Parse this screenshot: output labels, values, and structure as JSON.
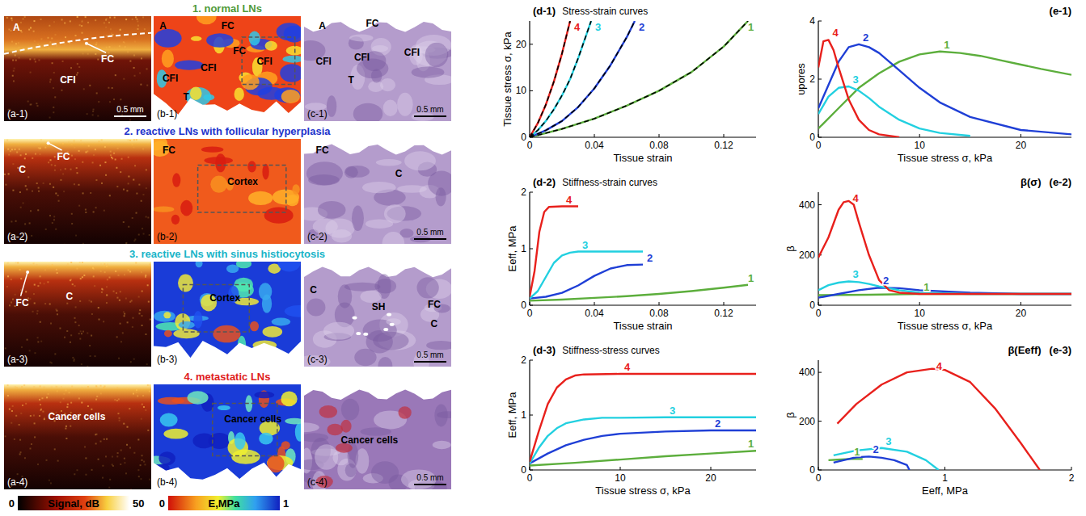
{
  "chart_data": [
    {
      "type": "line",
      "panel_label": "(d-1)",
      "title": "Stress-strain curves",
      "x_label": "Tissue strain",
      "y_label": "Tissue stress σ, kPa",
      "xlim": [
        0,
        0.14
      ],
      "xticks": [
        0,
        0.04,
        0.08,
        0.12
      ],
      "ylim": [
        0,
        25
      ],
      "yticks": [
        0,
        10,
        20
      ],
      "grid": false,
      "series": [
        {
          "name": "1",
          "color": "#5cae3c",
          "line_style": "solid",
          "x": [
            0,
            0.02,
            0.04,
            0.06,
            0.08,
            0.1,
            0.12,
            0.135
          ],
          "values": [
            0,
            1.8,
            4,
            6.8,
            10,
            14,
            19.5,
            25
          ]
        },
        {
          "name": "2",
          "color": "#1f3fd6",
          "line_style": "solid",
          "x": [
            0,
            0.01,
            0.02,
            0.03,
            0.04,
            0.05,
            0.06,
            0.065
          ],
          "values": [
            0,
            1.5,
            3.5,
            6.5,
            10.5,
            15.5,
            21.5,
            25
          ]
        },
        {
          "name": "3",
          "color": "#22d0e0",
          "line_style": "solid",
          "x": [
            0,
            0.005,
            0.01,
            0.015,
            0.02,
            0.025,
            0.03,
            0.035,
            0.038
          ],
          "values": [
            0,
            1.5,
            3.5,
            6,
            9,
            12.5,
            17,
            22,
            25
          ]
        },
        {
          "name": "4",
          "color": "#e8201c",
          "line_style": "solid",
          "x": [
            0,
            0.005,
            0.01,
            0.015,
            0.02,
            0.025
          ],
          "values": [
            0,
            3,
            7,
            12,
            18,
            25
          ]
        },
        {
          "color": "#000000",
          "line_style": "dashed",
          "x": [
            0,
            0.02,
            0.04,
            0.06,
            0.08,
            0.1,
            0.12,
            0.135
          ],
          "values": [
            0,
            1.8,
            4,
            6.8,
            10,
            14,
            19.5,
            25
          ]
        },
        {
          "color": "#000000",
          "line_style": "dashed",
          "x": [
            0,
            0.01,
            0.02,
            0.03,
            0.04,
            0.05,
            0.06,
            0.065
          ],
          "values": [
            0,
            1.5,
            3.5,
            6.5,
            10.5,
            15.5,
            21.5,
            25
          ]
        },
        {
          "color": "#000000",
          "line_style": "dashed",
          "x": [
            0,
            0.005,
            0.01,
            0.015,
            0.02,
            0.025,
            0.03,
            0.035,
            0.038
          ],
          "values": [
            0,
            1.5,
            3.5,
            6,
            9,
            12.5,
            17,
            22,
            25
          ]
        },
        {
          "color": "#000000",
          "line_style": "dashed",
          "x": [
            0,
            0.005,
            0.01,
            0.015,
            0.02,
            0.025
          ],
          "values": [
            0,
            3,
            7,
            12,
            18,
            25
          ]
        }
      ]
    },
    {
      "type": "line",
      "panel_label": "(d-2)",
      "title": "Stiffness-strain curves",
      "x_label": "Tissue strain",
      "y_label": "Eeff, MPa",
      "xlim": [
        0,
        0.14
      ],
      "xticks": [
        0,
        0.04,
        0.08,
        0.12
      ],
      "ylim": [
        0,
        2
      ],
      "yticks": [
        0,
        1,
        2
      ],
      "grid": false,
      "series": [
        {
          "name": "1",
          "color": "#5cae3c",
          "x": [
            0,
            0.02,
            0.04,
            0.06,
            0.08,
            0.1,
            0.12,
            0.135
          ],
          "values": [
            0.08,
            0.1,
            0.13,
            0.16,
            0.2,
            0.25,
            0.31,
            0.36
          ]
        },
        {
          "name": "2",
          "color": "#1f3fd6",
          "x": [
            0,
            0.01,
            0.02,
            0.03,
            0.04,
            0.05,
            0.06,
            0.07
          ],
          "values": [
            0.12,
            0.15,
            0.22,
            0.35,
            0.52,
            0.65,
            0.71,
            0.72
          ]
        },
        {
          "name": "3",
          "color": "#22d0e0",
          "x": [
            0,
            0.005,
            0.01,
            0.015,
            0.02,
            0.025,
            0.03,
            0.04,
            0.07
          ],
          "values": [
            0.12,
            0.25,
            0.5,
            0.75,
            0.88,
            0.93,
            0.95,
            0.95,
            0.95
          ]
        },
        {
          "name": "4",
          "color": "#e8201c",
          "x": [
            0,
            0.003,
            0.006,
            0.009,
            0.012,
            0.02,
            0.03
          ],
          "values": [
            0.15,
            0.6,
            1.3,
            1.65,
            1.74,
            1.75,
            1.75
          ]
        }
      ]
    },
    {
      "type": "line",
      "panel_label": "(d-3)",
      "title": "Stiffness-stress curves",
      "x_label": "Tissue stress σ, kPa",
      "y_label": "Eeff, MPa",
      "xlim": [
        0,
        25
      ],
      "xticks": [
        0,
        10,
        20
      ],
      "ylim": [
        0,
        2
      ],
      "yticks": [
        0,
        1,
        2
      ],
      "grid": false,
      "series": [
        {
          "name": "1",
          "color": "#5cae3c",
          "x": [
            0,
            5,
            10,
            15,
            20,
            25
          ],
          "values": [
            0.08,
            0.13,
            0.19,
            0.25,
            0.3,
            0.35
          ]
        },
        {
          "name": "2",
          "color": "#1f3fd6",
          "x": [
            0,
            2,
            4,
            6,
            8,
            10,
            15,
            20,
            25
          ],
          "values": [
            0.12,
            0.3,
            0.45,
            0.55,
            0.62,
            0.66,
            0.7,
            0.72,
            0.72
          ]
        },
        {
          "name": "3",
          "color": "#22d0e0",
          "x": [
            0,
            1,
            2,
            3,
            4,
            6,
            8,
            10,
            15,
            25
          ],
          "values": [
            0.12,
            0.4,
            0.62,
            0.76,
            0.85,
            0.92,
            0.95,
            0.95,
            0.96,
            0.96
          ]
        },
        {
          "name": "4",
          "color": "#e8201c",
          "x": [
            0,
            1,
            2,
            3,
            4,
            5,
            6,
            10,
            25
          ],
          "values": [
            0.15,
            0.7,
            1.2,
            1.5,
            1.65,
            1.72,
            1.74,
            1.75,
            1.75
          ]
        }
      ]
    },
    {
      "type": "line",
      "panel_label": "(e-1)",
      "x_label": "Tissue stress σ, kPa",
      "y_label": "υpores",
      "xlim": [
        0,
        25
      ],
      "xticks": [
        0,
        10,
        20
      ],
      "ylim": [
        0,
        4
      ],
      "yticks": [
        0,
        2,
        4
      ],
      "grid": false,
      "series": [
        {
          "name": "1",
          "color": "#5cae3c",
          "x": [
            0,
            2,
            4,
            6,
            8,
            10,
            12,
            14,
            16,
            18,
            20,
            22,
            25
          ],
          "values": [
            0.3,
            1.0,
            1.7,
            2.2,
            2.6,
            2.85,
            2.95,
            2.9,
            2.8,
            2.65,
            2.5,
            2.35,
            2.15
          ]
        },
        {
          "name": "2",
          "color": "#1f3fd6",
          "x": [
            0,
            1,
            2,
            3,
            4,
            5,
            6,
            8,
            10,
            12,
            15,
            20,
            25
          ],
          "values": [
            1.0,
            1.8,
            2.6,
            3.1,
            3.2,
            3.1,
            2.9,
            2.3,
            1.7,
            1.2,
            0.7,
            0.25,
            0.1
          ]
        },
        {
          "name": "3",
          "color": "#22d0e0",
          "x": [
            0,
            1,
            2,
            3,
            4,
            5,
            6,
            8,
            10,
            12,
            15
          ],
          "values": [
            0.8,
            1.4,
            1.7,
            1.75,
            1.6,
            1.35,
            1.05,
            0.6,
            0.3,
            0.15,
            0.05
          ]
        },
        {
          "name": "4",
          "color": "#e8201c",
          "x": [
            0,
            0.5,
            1,
            1.5,
            2,
            3,
            4,
            5,
            6,
            8
          ],
          "values": [
            2.4,
            3.3,
            3.35,
            3.0,
            2.4,
            1.3,
            0.6,
            0.25,
            0.1,
            0
          ]
        }
      ]
    },
    {
      "type": "line",
      "panel_label": "(e-2)",
      "title": "β(σ)",
      "x_label": "Tissue stress σ, kPa",
      "y_label": "β",
      "xlim": [
        0,
        25
      ],
      "xticks": [
        0,
        10,
        20
      ],
      "ylim": [
        0,
        450
      ],
      "yticks": [
        0,
        200,
        400
      ],
      "grid": false,
      "series": [
        {
          "name": "1",
          "color": "#5cae3c",
          "x": [
            0,
            5,
            10,
            15,
            20,
            25
          ],
          "values": [
            40,
            42,
            45,
            45,
            45,
            45
          ]
        },
        {
          "name": "2",
          "color": "#1f3fd6",
          "x": [
            0,
            2,
            4,
            6,
            8,
            10,
            15,
            20,
            25
          ],
          "values": [
            30,
            45,
            60,
            70,
            68,
            60,
            50,
            45,
            45
          ]
        },
        {
          "name": "3",
          "color": "#22d0e0",
          "x": [
            0,
            1,
            2,
            3,
            4,
            5,
            6,
            8,
            10,
            15,
            25
          ],
          "values": [
            60,
            80,
            90,
            95,
            92,
            85,
            75,
            60,
            50,
            45,
            45
          ]
        },
        {
          "name": "4",
          "color": "#e8201c",
          "x": [
            0,
            1,
            2,
            2.5,
            3,
            3.5,
            4,
            5,
            6,
            7,
            8,
            10,
            15,
            25
          ],
          "values": [
            190,
            270,
            380,
            410,
            415,
            400,
            330,
            200,
            100,
            60,
            50,
            45,
            45,
            45
          ]
        }
      ]
    },
    {
      "type": "line",
      "panel_label": "(e-3)",
      "title": "β(Eeff)",
      "x_label": "Eeff, MPa",
      "y_label": "β",
      "xlim": [
        0,
        2
      ],
      "xticks": [
        0,
        1,
        2
      ],
      "ylim": [
        0,
        450
      ],
      "yticks": [
        0,
        200,
        400
      ],
      "grid": false,
      "series": [
        {
          "name": "1",
          "color": "#5cae3c",
          "x": [
            0.08,
            0.15,
            0.25,
            0.35
          ],
          "values": [
            40,
            42,
            45,
            45
          ]
        },
        {
          "name": "2",
          "color": "#1f3fd6",
          "x": [
            0.12,
            0.2,
            0.3,
            0.4,
            0.5,
            0.6,
            0.7,
            0.72
          ],
          "values": [
            30,
            40,
            52,
            55,
            50,
            40,
            20,
            0
          ]
        },
        {
          "name": "3",
          "color": "#22d0e0",
          "x": [
            0.12,
            0.3,
            0.5,
            0.7,
            0.85,
            0.95
          ],
          "values": [
            60,
            80,
            90,
            75,
            40,
            0
          ]
        },
        {
          "name": "4",
          "color": "#e8201c",
          "x": [
            0.15,
            0.3,
            0.5,
            0.7,
            0.9,
            1.0,
            1.2,
            1.4,
            1.6,
            1.75
          ],
          "values": [
            190,
            270,
            350,
            400,
            415,
            410,
            360,
            250,
            110,
            0
          ]
        }
      ]
    }
  ],
  "figure": {
    "rows": [
      {
        "title": "1. normal LNs",
        "color": "#4f9a3a",
        "oct": {
          "label": "(a-1)",
          "annotations": [
            "A",
            "CFI",
            "FC"
          ],
          "scale_bar": "0.5 mm"
        },
        "elastography": {
          "label": "(b-1)",
          "annotations": [
            "A",
            "FC",
            "FC",
            "CFI",
            "CFI",
            "CFI",
            "T"
          ]
        },
        "histology": {
          "label": "(c-1)",
          "annotations": [
            "A",
            "FC",
            "CFI",
            "CFI",
            "CFI",
            "T"
          ],
          "scale_bar": "0.5 mm"
        }
      },
      {
        "title": "2. reactive LNs with follicular hyperplasia",
        "color": "#2233cc",
        "oct": {
          "label": "(a-2)",
          "annotations": [
            "C",
            "FC"
          ]
        },
        "elastography": {
          "label": "(b-2)",
          "annotations": [
            "FC",
            "Cortex"
          ]
        },
        "histology": {
          "label": "(c-2)",
          "annotations": [
            "FC",
            "C"
          ],
          "scale_bar": "0.5 mm"
        }
      },
      {
        "title": "3. reactive LNs with sinus  histiocytosis",
        "color": "#18b4c8",
        "oct": {
          "label": "(a-3)",
          "annotations": [
            "FC",
            "C"
          ]
        },
        "elastography": {
          "label": "(b-3)",
          "annotations": [
            "Cortex"
          ]
        },
        "histology": {
          "label": "(c-3)",
          "annotations": [
            "C",
            "SH",
            "C",
            "FC"
          ],
          "scale_bar": "0.5 mm"
        }
      },
      {
        "title": "4. metastatic LNs",
        "color": "#e02020",
        "oct": {
          "label": "(a-4)",
          "annotations": [
            "Cancer cells"
          ]
        },
        "elastography": {
          "label": "(b-4)",
          "annotations": [
            "Cancer cells"
          ]
        },
        "histology": {
          "label": "(c-4)",
          "annotations": [
            "Cancer cells"
          ],
          "scale_bar": "0.5 mm"
        }
      }
    ],
    "colorbars": [
      {
        "label": "Signal, dB",
        "range": [
          0,
          50
        ],
        "ticks": [
          0,
          50
        ]
      },
      {
        "label": "E,MPa",
        "range": [
          0,
          1
        ],
        "ticks": [
          0,
          1
        ]
      }
    ]
  }
}
